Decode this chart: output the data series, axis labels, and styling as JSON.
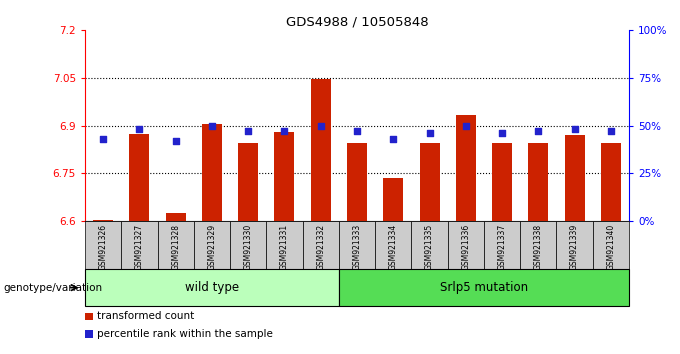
{
  "title": "GDS4988 / 10505848",
  "samples": [
    "GSM921326",
    "GSM921327",
    "GSM921328",
    "GSM921329",
    "GSM921330",
    "GSM921331",
    "GSM921332",
    "GSM921333",
    "GSM921334",
    "GSM921335",
    "GSM921336",
    "GSM921337",
    "GSM921338",
    "GSM921339",
    "GSM921340"
  ],
  "transformed_count": [
    6.605,
    6.875,
    6.625,
    6.905,
    6.845,
    6.88,
    7.046,
    6.845,
    6.735,
    6.845,
    6.935,
    6.845,
    6.845,
    6.87,
    6.845
  ],
  "percentile_rank": [
    43,
    48,
    42,
    50,
    47,
    47,
    50,
    47,
    43,
    46,
    50,
    46,
    47,
    48,
    47
  ],
  "ylim_left": [
    6.6,
    7.2
  ],
  "ylim_right": [
    0,
    100
  ],
  "yticks_left": [
    6.6,
    6.75,
    6.9,
    7.05,
    7.2
  ],
  "ytick_labels_left": [
    "6.6",
    "6.75",
    "6.9",
    "7.05",
    "7.2"
  ],
  "yticks_right": [
    0,
    25,
    50,
    75,
    100
  ],
  "ytick_labels_right": [
    "0%",
    "25%",
    "50%",
    "75%",
    "100%"
  ],
  "gridline_values": [
    6.75,
    6.9,
    7.05
  ],
  "group1_label": "wild type",
  "group2_label": "Srlp5 mutation",
  "group1_indices": [
    0,
    1,
    2,
    3,
    4,
    5,
    6
  ],
  "group2_indices": [
    7,
    8,
    9,
    10,
    11,
    12,
    13,
    14
  ],
  "bar_color": "#cc2200",
  "dot_color": "#2222cc",
  "group1_bg": "#bbffbb",
  "group2_bg": "#55dd55",
  "sample_bg": "#cccccc",
  "legend_label_bar": "transformed count",
  "legend_label_dot": "percentile rank within the sample",
  "genotype_label": "genotype/variation"
}
